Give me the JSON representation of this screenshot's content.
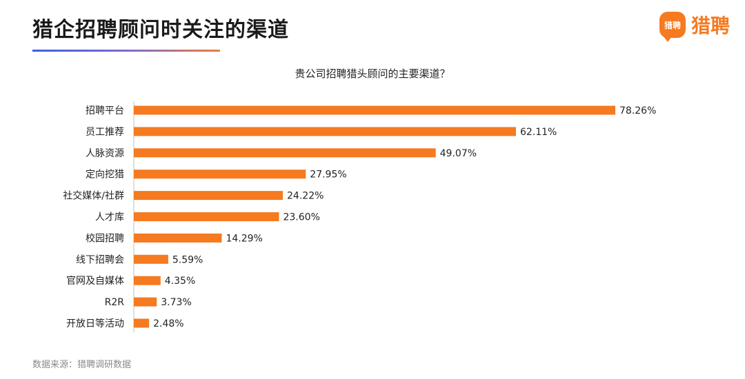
{
  "page": {
    "title": "猎企招聘顾问时关注的渠道",
    "source": "数据来源：猎聘调研数据"
  },
  "brand": {
    "badge_text": "猎聘",
    "name": "猎聘"
  },
  "colors": {
    "bar": "#f57a20",
    "axis": "#bfbfbf"
  },
  "chart_data": {
    "type": "bar",
    "orientation": "horizontal",
    "title": "贵公司招聘猎头顾问的主要渠道？",
    "categories": [
      "招聘平台",
      "员工推荐",
      "人脉资源",
      "定向挖猎",
      "社交媒体/社群",
      "人才库",
      "校园招聘",
      "线下招聘会",
      "官网及自媒体",
      "R2R",
      "开放日等活动"
    ],
    "values": [
      78.26,
      62.11,
      49.07,
      27.95,
      24.22,
      23.6,
      14.29,
      5.59,
      4.35,
      3.73,
      2.48
    ],
    "value_labels": [
      "78.26%",
      "62.11%",
      "49.07%",
      "27.95%",
      "24.22%",
      "23.60%",
      "14.29%",
      "5.59%",
      "4.35%",
      "3.73%",
      "2.48%"
    ],
    "unit": "%",
    "xlim": [
      0,
      80
    ],
    "grid": false,
    "legend": "none"
  }
}
